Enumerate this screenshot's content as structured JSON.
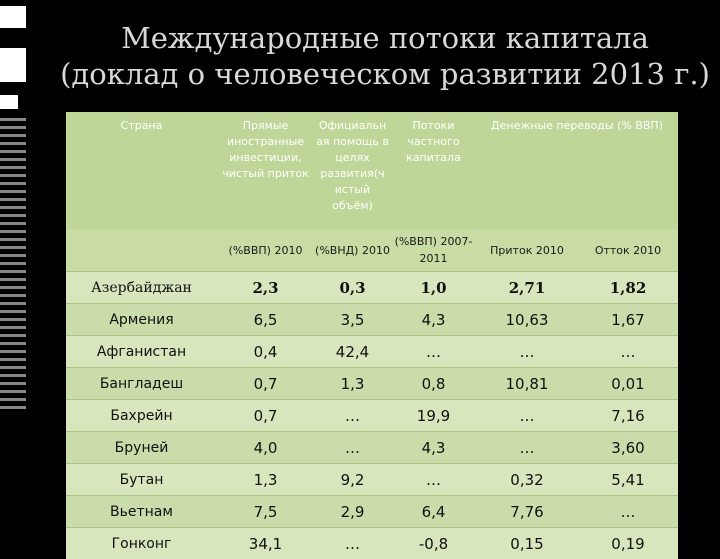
{
  "title": {
    "line1": "Международные потоки капитала",
    "line2": "(доклад о человеческом развитии 2013 г.)"
  },
  "table": {
    "headers": [
      "Страна",
      "Прямые иностранные инвестиции, чистый приток",
      "Официальн ая помощь в целях развития(ч истый объём)",
      "Потоки частного капитала",
      "Денежные переводы (% ВВП)",
      ""
    ],
    "subheaders": [
      "",
      "(%ВВП) 2010",
      "(%ВНД) 2010",
      "(%ВВП) 2007-2011",
      "Приток 2010",
      "Отток 2010"
    ],
    "rows": [
      [
        "Азербайджан",
        "2,3",
        "0,3",
        "1,0",
        "2,71",
        "1,82"
      ],
      [
        "Армения",
        "6,5",
        "3,5",
        "4,3",
        "10,63",
        "1,67"
      ],
      [
        "Афганистан",
        "0,4",
        "42,4",
        "…",
        "…",
        "…"
      ],
      [
        "Бангладеш",
        "0,7",
        "1,3",
        "0,8",
        "10,81",
        "0,01"
      ],
      [
        "Бахрейн",
        "0,7",
        "…",
        "19,9",
        "…",
        "7,16"
      ],
      [
        "Бруней",
        "4,0",
        "…",
        "4,3",
        "…",
        "3,60"
      ],
      [
        "Бутан",
        "1,3",
        "9,2",
        "…",
        "0,32",
        "5,41"
      ],
      [
        "Вьетнам",
        "7,5",
        "2,9",
        "6,4",
        "7,76",
        "…"
      ],
      [
        "Гонконг",
        "34,1",
        "…",
        "-0,8",
        "0,15",
        "0,19"
      ]
    ]
  }
}
